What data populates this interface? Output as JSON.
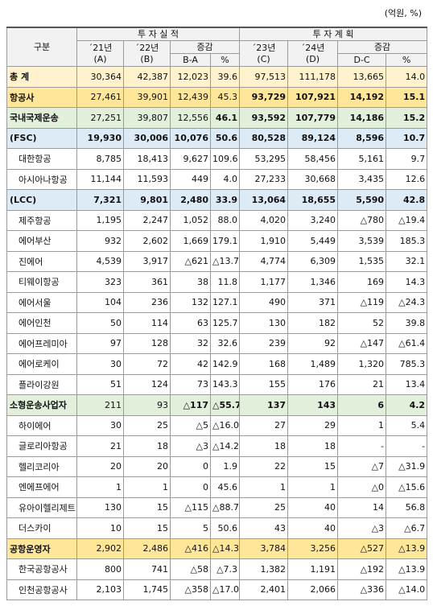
{
  "unit": "(억원, %)",
  "table": {
    "header": {
      "group": "구분",
      "actual": "투 자 실 적",
      "plan": "투 자 계 획",
      "change": "증감",
      "columns": [
        {
          "year": "´21년",
          "code": "(A)"
        },
        {
          "year": "´22년",
          "code": "(B)"
        },
        {
          "year": "´23년",
          "code": "(C)"
        },
        {
          "year": "´24년",
          "code": "(D)"
        }
      ],
      "diff_actual": "B-A",
      "diff_plan": "D-C",
      "pct": "%"
    },
    "rows": [
      [
        "총 계",
        "30,364",
        "42,387",
        "12,023",
        "39.6",
        "97,513",
        "111,178",
        "13,665",
        "14.0"
      ],
      [
        "항공사",
        "27,461",
        "39,901",
        "12,439",
        "45.3",
        "93,729",
        "107,921",
        "14,192",
        "15.1"
      ],
      [
        "국내국제운송",
        "27,251",
        "39,807",
        "12,556",
        "46.1",
        "93,592",
        "107,779",
        "14,186",
        "15.2"
      ],
      [
        "(FSC)",
        "19,930",
        "30,006",
        "10,076",
        "50.6",
        "80,528",
        "89,124",
        "8,596",
        "10.7"
      ],
      [
        "대한항공",
        "8,785",
        "18,413",
        "9,627",
        "109.6",
        "53,295",
        "58,456",
        "5,161",
        "9.7"
      ],
      [
        "아시아나항공",
        "11,144",
        "11,593",
        "449",
        "4.0",
        "27,233",
        "30,668",
        "3,435",
        "12.6"
      ],
      [
        "(LCC)",
        "7,321",
        "9,801",
        "2,480",
        "33.9",
        "13,064",
        "18,655",
        "5,590",
        "42.8"
      ],
      [
        "제주항공",
        "1,195",
        "2,247",
        "1,052",
        "88.0",
        "4,020",
        "3,240",
        "△780",
        "△19.4"
      ],
      [
        "에어부산",
        "932",
        "2,602",
        "1,669",
        "179.1",
        "1,910",
        "5,449",
        "3,539",
        "185.3"
      ],
      [
        "진에어",
        "4,539",
        "3,917",
        "△621",
        "△13.7",
        "4,774",
        "6,309",
        "1,535",
        "32.1"
      ],
      [
        "티웨이항공",
        "323",
        "361",
        "38",
        "11.8",
        "1,177",
        "1,346",
        "169",
        "14.3"
      ],
      [
        "에어서울",
        "104",
        "236",
        "132",
        "127.1",
        "490",
        "371",
        "△119",
        "△24.3"
      ],
      [
        "에어인천",
        "50",
        "114",
        "63",
        "125.7",
        "130",
        "182",
        "52",
        "39.8"
      ],
      [
        "에어프레미아",
        "97",
        "128",
        "32",
        "32.6",
        "239",
        "92",
        "△147",
        "△61.4"
      ],
      [
        "에어로케이",
        "30",
        "72",
        "42",
        "142.9",
        "168",
        "1,489",
        "1,320",
        "785.3"
      ],
      [
        "플라이강원",
        "51",
        "124",
        "73",
        "143.3",
        "155",
        "176",
        "21",
        "13.4"
      ],
      [
        "소형운송사업자",
        "211",
        "93",
        "△117",
        "△55.7",
        "137",
        "143",
        "6",
        "4.2"
      ],
      [
        "하이에어",
        "30",
        "25",
        "△5",
        "△16.0",
        "27",
        "29",
        "1",
        "5.4"
      ],
      [
        "글로리아항공",
        "21",
        "18",
        "△3",
        "△14.2",
        "18",
        "18",
        "-",
        "-"
      ],
      [
        "헬리코리아",
        "20",
        "20",
        "0",
        "1.9",
        "22",
        "15",
        "△7",
        "△31.9"
      ],
      [
        "엔에프에어",
        "1",
        "1",
        "0",
        "45.6",
        "1",
        "1",
        "△0",
        "△15.6"
      ],
      [
        "유아이헬리제트",
        "130",
        "15",
        "△115",
        "△88.7",
        "25",
        "40",
        "14",
        "56.8"
      ],
      [
        "더스카이",
        "10",
        "15",
        "5",
        "50.6",
        "43",
        "40",
        "△3",
        "△6.7"
      ],
      [
        "공항운영자",
        "2,902",
        "2,486",
        "△416",
        "△14.3",
        "3,784",
        "3,256",
        "△527",
        "△13.9"
      ],
      [
        "한국공항공사",
        "800",
        "741",
        "△58",
        "△7.3",
        "1,382",
        "1,191",
        "△192",
        "△13.9"
      ],
      [
        "인천공항공사",
        "2,103",
        "1,745",
        "△358",
        "△17.0",
        "2,401",
        "2,066",
        "△336",
        "△14.0"
      ]
    ]
  }
}
